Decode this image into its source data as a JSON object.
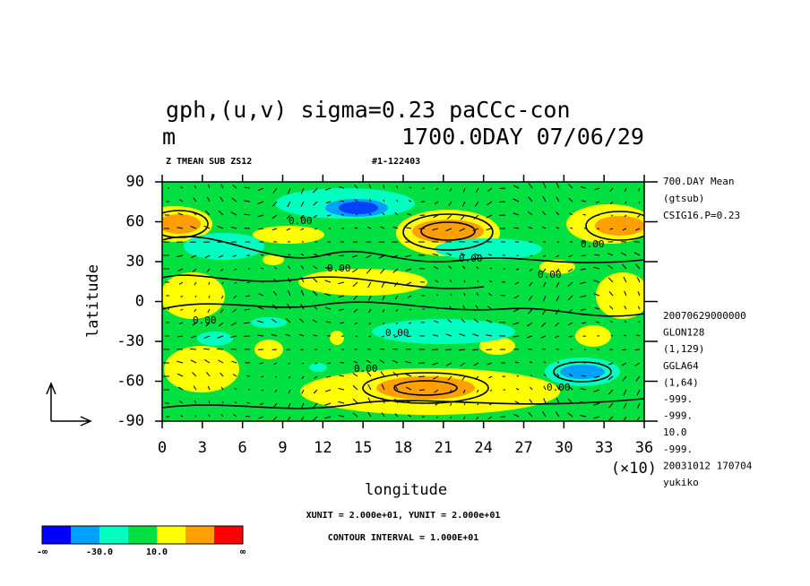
{
  "chart_data": {
    "type": "contour",
    "title": "gph,(u,v) sigma=0.23 paCCc-con",
    "subtitle_left": "m",
    "subtitle_right": "1700.0DAY 07/06/29",
    "header_left": "Z TMEAN SUB ZS12",
    "header_right": "#1-122403",
    "x_label": "longitude",
    "y_label": "latitude",
    "x_multiplier": "(×10)",
    "xlim": [
      0,
      36
    ],
    "xticks": [
      0,
      3,
      6,
      9,
      12,
      15,
      18,
      21,
      24,
      27,
      30,
      33,
      36
    ],
    "ylim": [
      -90,
      90
    ],
    "yticks": [
      90,
      60,
      30,
      0,
      -30,
      -60,
      -90
    ],
    "side_notes": [
      "700.DAY Mean",
      "(gtsub)",
      "CSIG16.P=0.23"
    ],
    "side_info": [
      "20070629000000",
      "GLON128",
      "(1,129)",
      "GGLA64",
      "(1,64)",
      "-999.",
      "-999.",
      "10.0",
      "-999.",
      "20031012 170704",
      "yukiko"
    ],
    "unit_note": "XUNIT = 2.000e+01, YUNIT = 2.000e+01",
    "contour_note": "CONTOUR INTERVAL = 1.000E+01",
    "contour_labels": [
      "0.00",
      "0.00",
      "0.00",
      "0.00",
      "0.00",
      "0.00",
      "0.00",
      "0.00",
      "0.00"
    ],
    "colorbar": {
      "colors": [
        "#0000ff",
        "#00a0ff",
        "#00ffc0",
        "#00e040",
        "#ffff00",
        "#ffa000",
        "#ff0000"
      ],
      "labels": [
        "-∞",
        "-30.0",
        "10.0",
        "∞"
      ]
    }
  }
}
